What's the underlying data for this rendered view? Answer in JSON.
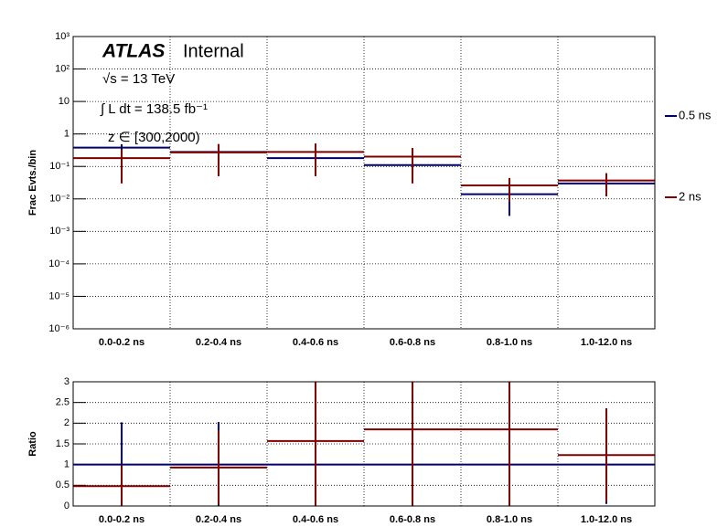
{
  "chart_data": [
    {
      "type": "errorbar",
      "y_label": "Frac Evts./bin",
      "log_y": true,
      "grid": true,
      "annotations": {
        "experiment": "ATLAS",
        "status": "Internal",
        "energy": "√s = 13 TeV",
        "lumi": "∫ L dt = 138.5 fb⁻¹",
        "selection": "z ∈ [300,2000)"
      },
      "categories": [
        "0.0-0.2 ns",
        "0.2-0.4 ns",
        "0.4-0.6 ns",
        "0.6-0.8 ns",
        "0.8-1.0 ns",
        "1.0-12.0 ns"
      ],
      "ylim": [
        1e-06,
        1000
      ],
      "yticks": [
        {
          "value": 1e-06,
          "label": "10⁻⁶"
        },
        {
          "value": 1e-05,
          "label": "10⁻⁵"
        },
        {
          "value": 0.0001,
          "label": "10⁻⁴"
        },
        {
          "value": 0.001,
          "label": "10⁻³"
        },
        {
          "value": 0.01,
          "label": "10⁻²"
        },
        {
          "value": 0.1,
          "label": "10⁻¹"
        },
        1,
        10,
        {
          "value": 100,
          "label": "10²"
        },
        {
          "value": 1000,
          "label": "10³"
        }
      ],
      "series": [
        {
          "name": "0.5 ns",
          "color": "#000066",
          "values": [
            0.38,
            0.28,
            0.18,
            0.11,
            0.014,
            0.03
          ],
          "errors": [
            0.1,
            0.05,
            0.04,
            0.03,
            0.011,
            0.01
          ]
        },
        {
          "name": "2 ns",
          "color": "#800000",
          "values": [
            0.18,
            0.27,
            0.28,
            0.2,
            0.026,
            0.037
          ],
          "errors": [
            0.15,
            0.22,
            0.23,
            0.17,
            0.018,
            0.025
          ]
        }
      ]
    },
    {
      "type": "errorbar",
      "y_label": "Ratio",
      "log_y": false,
      "grid": true,
      "categories": [
        "0.0-0.2 ns",
        "0.2-0.4 ns",
        "0.4-0.6 ns",
        "0.6-0.8 ns",
        "0.8-1.0 ns",
        "1.0-12.0 ns"
      ],
      "ylim": [
        0,
        3
      ],
      "yticks": [
        0,
        0.5,
        1,
        1.5,
        2,
        2.5,
        3
      ],
      "series": [
        {
          "name": "0.5 ns",
          "color": "#000066",
          "values": [
            1,
            1,
            1,
            1,
            1,
            1
          ],
          "errors": [
            1.02,
            1.03,
            1.0,
            1.0,
            1.1,
            0.95
          ]
        },
        {
          "name": "2 ns",
          "color": "#800000",
          "values": [
            0.48,
            0.93,
            1.57,
            1.85,
            1.85,
            1.23
          ],
          "errors": [
            0.5,
            0.9,
            1.6,
            1.9,
            1.9,
            1.13
          ]
        }
      ]
    }
  ]
}
